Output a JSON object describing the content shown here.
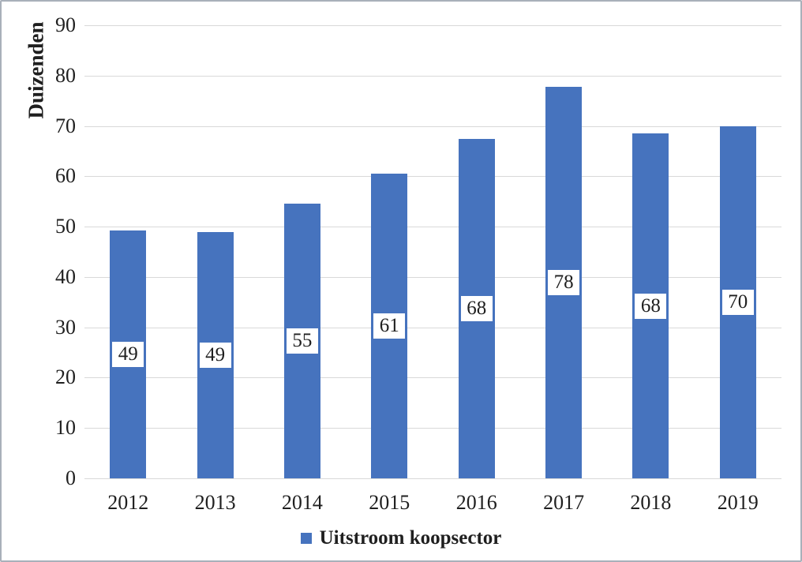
{
  "chart_data": {
    "type": "bar",
    "title": "",
    "ylabel": "Duizenden",
    "xlabel": "",
    "categories": [
      "2012",
      "2013",
      "2014",
      "2015",
      "2016",
      "2017",
      "2018",
      "2019"
    ],
    "series": [
      {
        "name": "Uitstroom koopsector",
        "values": [
          49,
          49,
          55,
          61,
          68,
          78,
          68,
          70
        ],
        "values_precise": [
          49.3,
          49.0,
          54.5,
          60.6,
          67.5,
          77.8,
          68.5,
          70.0
        ]
      }
    ],
    "data_labels": [
      49,
      49,
      55,
      61,
      68,
      78,
      68,
      70
    ],
    "ylim": [
      0,
      90
    ],
    "yticks": [
      0,
      10,
      20,
      30,
      40,
      50,
      60,
      70,
      80,
      90
    ],
    "grid": true,
    "legend_position": "bottom",
    "bar_color": "#4673BE",
    "gridline_color": "#D9D9D9",
    "text_color": "#1F1F1F"
  },
  "legend": {
    "items": [
      {
        "label": "Uitstroom koopsector",
        "color": "#4673BE"
      }
    ]
  }
}
